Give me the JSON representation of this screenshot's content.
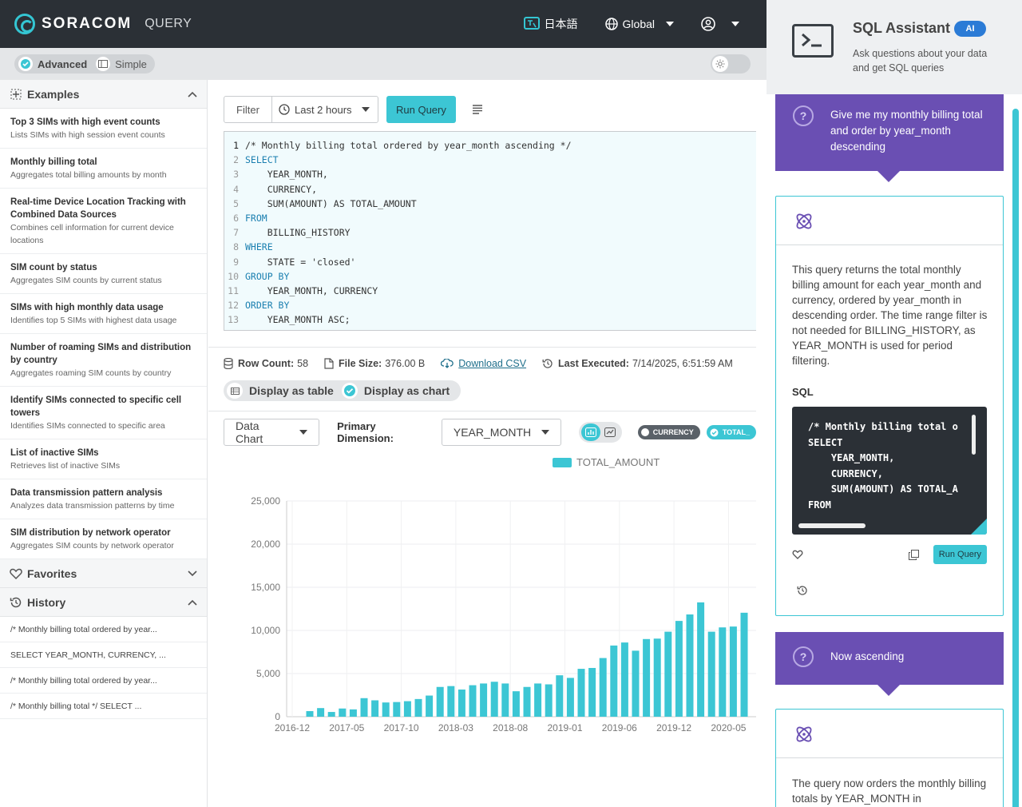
{
  "header": {
    "brand": "SORACOM",
    "product": "QUERY",
    "language": "日本語",
    "region": "Global"
  },
  "modebar": {
    "advanced": "Advanced",
    "simple": "Simple"
  },
  "sidebar": {
    "examples_label": "Examples",
    "examples": [
      {
        "title": "Top 3 SIMs with high event counts",
        "desc": "Lists SIMs with high session event counts"
      },
      {
        "title": "Monthly billing total",
        "desc": "Aggregates total billing amounts by month"
      },
      {
        "title": "Real-time Device Location Tracking with Combined Data Sources",
        "desc": "Combines cell information for current device locations"
      },
      {
        "title": "SIM count by status",
        "desc": "Aggregates SIM counts by current status"
      },
      {
        "title": "SIMs with high monthly data usage",
        "desc": "Identifies top 5 SIMs with highest data usage"
      },
      {
        "title": "Number of roaming SIMs and distribution by country",
        "desc": "Aggregates roaming SIM counts by country"
      },
      {
        "title": "Identify SIMs connected to specific cell towers",
        "desc": "Identifies SIMs connected to specific area"
      },
      {
        "title": "List of inactive SIMs",
        "desc": "Retrieves list of inactive SIMs"
      },
      {
        "title": "Data transmission pattern analysis",
        "desc": "Analyzes data transmission patterns by time"
      },
      {
        "title": "SIM distribution by network operator",
        "desc": "Aggregates SIM counts by network operator"
      }
    ],
    "favorites_label": "Favorites",
    "history_label": "History",
    "history": [
      "/* Monthly billing total ordered by year...",
      "SELECT YEAR_MONTH, CURRENCY, ...",
      "/* Monthly billing total ordered by year...",
      "/* Monthly billing total */ SELECT ..."
    ]
  },
  "toolbar": {
    "filter": "Filter",
    "time_range": "Last 2 hours",
    "run": "Run Query"
  },
  "editor": {
    "lines": [
      "/* Monthly billing total ordered by year_month ascending */",
      "SELECT",
      "    YEAR_MONTH,",
      "    CURRENCY,",
      "    SUM(AMOUNT) AS TOTAL_AMOUNT",
      "FROM",
      "    BILLING_HISTORY",
      "WHERE",
      "    STATE = 'closed'",
      "GROUP BY",
      "    YEAR_MONTH, CURRENCY",
      "ORDER BY",
      "    YEAR_MONTH ASC;"
    ]
  },
  "results": {
    "row_count_label": "Row Count:",
    "row_count": "58",
    "file_size_label": "File Size:",
    "file_size": "376.00 B",
    "download": "Download CSV",
    "last_executed_label": "Last Executed:",
    "last_executed": "7/14/2025, 6:51:59 AM",
    "display_table": "Display as table",
    "display_chart": "Display as chart"
  },
  "chart_controls": {
    "chart_type": "Data Chart",
    "primary_dimension_label": "Primary Dimension:",
    "primary_dimension": "YEAR_MONTH",
    "chip_currency": "CURRENCY",
    "chip_total": "TOTAL_"
  },
  "chart_data": {
    "type": "bar",
    "legend": "TOTAL_AMOUNT",
    "x_tick_labels": [
      "2016-12",
      "2017-05",
      "2017-10",
      "2018-03",
      "2018-08",
      "2019-01",
      "2019-06",
      "2019-12",
      "2020-05"
    ],
    "y_tick_labels": [
      "0",
      "5,000",
      "10,000",
      "15,000",
      "20,000",
      "25,000"
    ],
    "ylim": [
      0,
      25000
    ],
    "values": [
      650,
      1000,
      550,
      950,
      850,
      2150,
      1900,
      1650,
      1700,
      1800,
      2050,
      2450,
      3450,
      3550,
      3150,
      3650,
      3850,
      4050,
      3850,
      2950,
      3450,
      3850,
      3750,
      4800,
      4500,
      5550,
      5650,
      6800,
      8250,
      8600,
      7650,
      9000,
      9050,
      9850,
      11100,
      11850,
      13250,
      9850,
      10350,
      10450,
      12050
    ],
    "color": "#3cc6d4"
  },
  "assistant": {
    "title": "SQL Assistant",
    "badge": "AI",
    "subtitle": "Ask questions about your data and get SQL queries",
    "q1": "Give me my monthly billing total and order by year_month descending",
    "a1": "This query returns the total monthly billing amount for each year_month and currency, ordered by year_month in descending order. The time range filter is not needed for BILLING_HISTORY, as YEAR_MONTH is used for period filtering.",
    "sql_label": "SQL",
    "sql_lines": [
      "/* Monthly billing total o",
      "SELECT",
      "    YEAR_MONTH,",
      "    CURRENCY,",
      "    SUM(AMOUNT) AS TOTAL_A",
      "FROM"
    ],
    "run": "Run Query",
    "q2": "Now ascending",
    "a2": "The query now orders the monthly billing totals by YEAR_MONTH in"
  }
}
